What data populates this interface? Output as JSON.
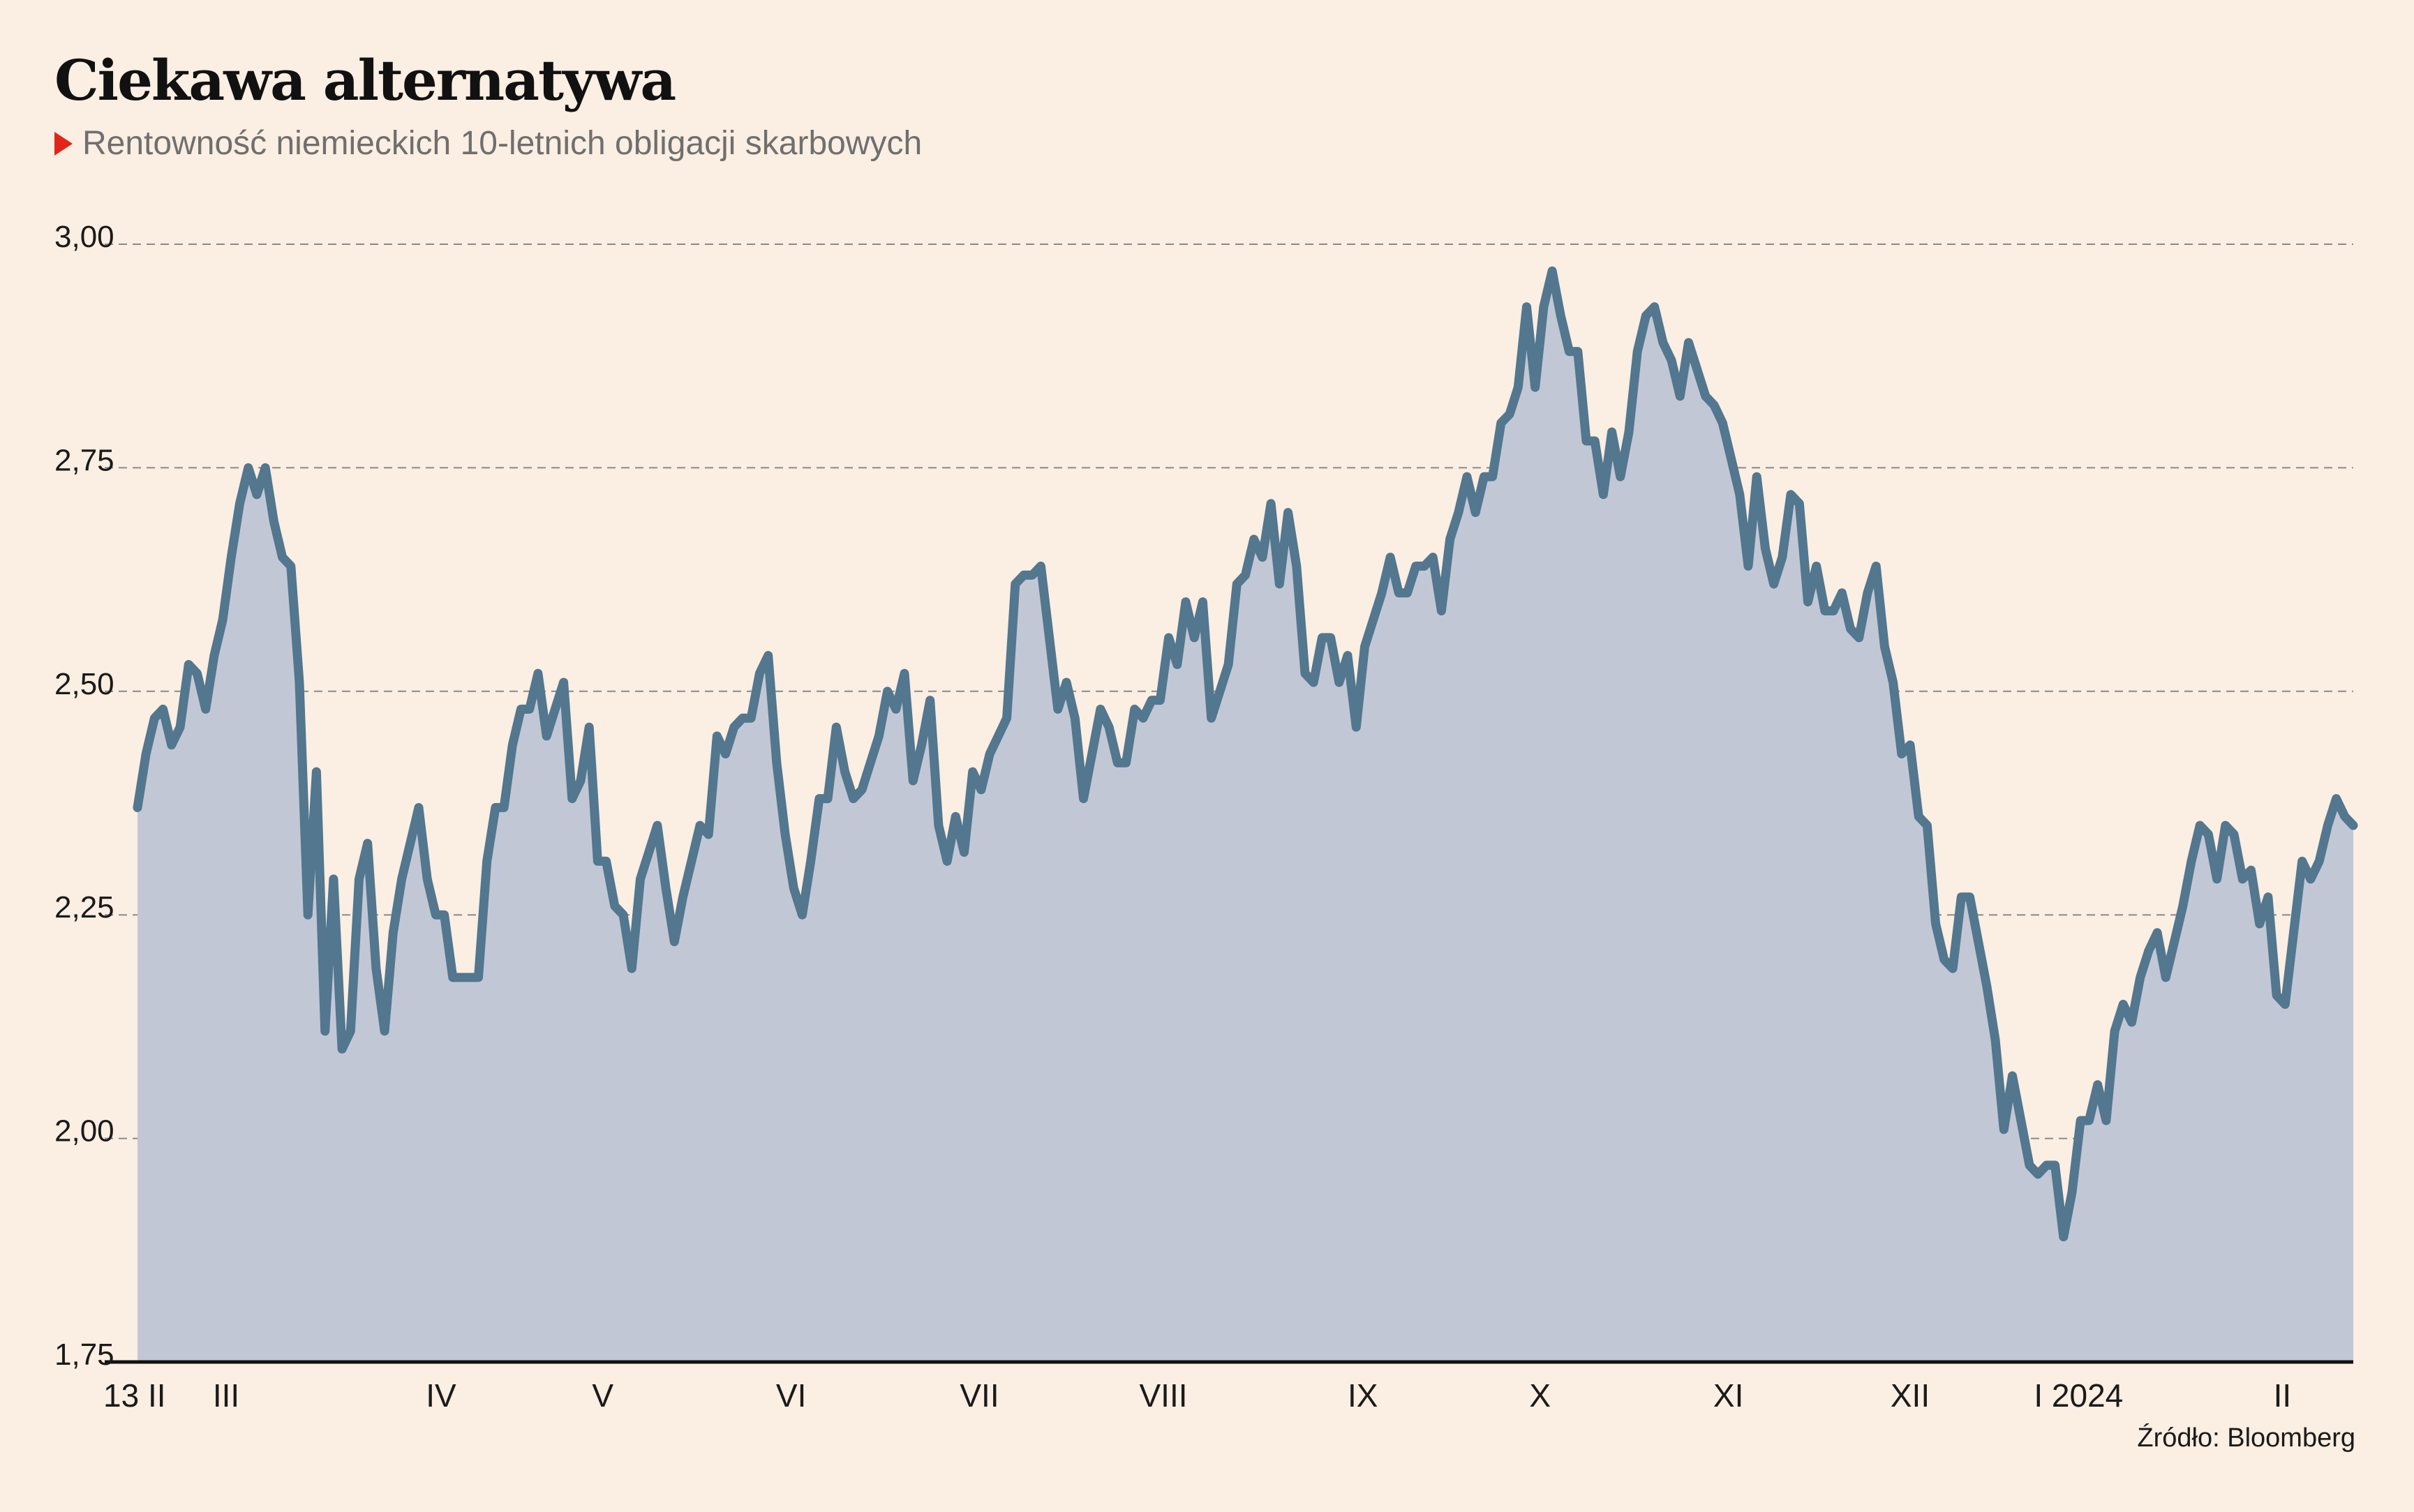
{
  "title": "Ciekawa alternatywa",
  "subtitle": "Rentowność niemieckich 10-letnich obligacji skarbowych",
  "source": "Źródło: Bloomberg",
  "colors": {
    "line": "#52778f",
    "area": "#c2c7d6",
    "background": "#fbeee2",
    "marker": "#e1251b",
    "grid": "#8a8a8a"
  },
  "chart_data": {
    "type": "area",
    "title": "Ciekawa alternatywa",
    "subtitle": "Rentowność niemieckich 10-letnich obligacji skarbowych",
    "ylim": [
      1.75,
      3.0
    ],
    "y_ticks": [
      {
        "value": 3.0,
        "label": "3,00"
      },
      {
        "value": 2.75,
        "label": "2,75"
      },
      {
        "value": 2.5,
        "label": "2,50"
      },
      {
        "value": 2.25,
        "label": "2,25"
      },
      {
        "value": 2.0,
        "label": "2,00"
      },
      {
        "value": 1.75,
        "label": "1,75"
      }
    ],
    "x_tick_labels": [
      "13 II",
      "III",
      "IV",
      "V",
      "VI",
      "VII",
      "VIII",
      "IX",
      "X",
      "XI",
      "XII",
      "I 2024",
      "II"
    ],
    "grid": "dashed horizontal",
    "series": [
      {
        "values": [
          2.37,
          2.43,
          2.47,
          2.48,
          2.44,
          2.46,
          2.53,
          2.52,
          2.48,
          2.54,
          2.58,
          2.65,
          2.71,
          2.75,
          2.72,
          2.75,
          2.69,
          2.65,
          2.64,
          2.51,
          2.25,
          2.41,
          2.12,
          2.29,
          2.1,
          2.12,
          2.29,
          2.33,
          2.19,
          2.12,
          2.23,
          2.29,
          2.33,
          2.37,
          2.29,
          2.25,
          2.25,
          2.18,
          2.18,
          2.18,
          2.18,
          2.31,
          2.37,
          2.37,
          2.44,
          2.48,
          2.48,
          2.52,
          2.45,
          2.48,
          2.51,
          2.38,
          2.4,
          2.46,
          2.31,
          2.31,
          2.26,
          2.25,
          2.19,
          2.29,
          2.32,
          2.35,
          2.28,
          2.22,
          2.27,
          2.31,
          2.35,
          2.34,
          2.45,
          2.43,
          2.46,
          2.47,
          2.47,
          2.52,
          2.54,
          2.42,
          2.34,
          2.28,
          2.25,
          2.31,
          2.38,
          2.38,
          2.46,
          2.41,
          2.38,
          2.39,
          2.42,
          2.45,
          2.5,
          2.48,
          2.52,
          2.4,
          2.44,
          2.49,
          2.35,
          2.31,
          2.36,
          2.32,
          2.41,
          2.39,
          2.43,
          2.45,
          2.47,
          2.62,
          2.63,
          2.63,
          2.64,
          2.56,
          2.48,
          2.51,
          2.47,
          2.38,
          2.43,
          2.48,
          2.46,
          2.42,
          2.42,
          2.48,
          2.47,
          2.49,
          2.49,
          2.56,
          2.53,
          2.6,
          2.56,
          2.6,
          2.47,
          2.5,
          2.53,
          2.62,
          2.63,
          2.67,
          2.65,
          2.71,
          2.62,
          2.7,
          2.64,
          2.52,
          2.51,
          2.56,
          2.56,
          2.51,
          2.54,
          2.46,
          2.55,
          2.58,
          2.61,
          2.65,
          2.61,
          2.61,
          2.64,
          2.64,
          2.65,
          2.59,
          2.67,
          2.7,
          2.74,
          2.7,
          2.74,
          2.74,
          2.8,
          2.81,
          2.84,
          2.93,
          2.84,
          2.93,
          2.97,
          2.92,
          2.88,
          2.88,
          2.78,
          2.78,
          2.72,
          2.79,
          2.74,
          2.79,
          2.88,
          2.92,
          2.93,
          2.89,
          2.87,
          2.83,
          2.89,
          2.86,
          2.83,
          2.82,
          2.8,
          2.76,
          2.72,
          2.64,
          2.74,
          2.66,
          2.62,
          2.65,
          2.72,
          2.71,
          2.6,
          2.64,
          2.59,
          2.59,
          2.61,
          2.57,
          2.56,
          2.61,
          2.64,
          2.55,
          2.51,
          2.43,
          2.44,
          2.36,
          2.35,
          2.24,
          2.2,
          2.19,
          2.27,
          2.27,
          2.22,
          2.17,
          2.11,
          2.01,
          2.07,
          2.02,
          1.97,
          1.96,
          1.97,
          1.97,
          1.89,
          1.94,
          2.02,
          2.02,
          2.06,
          2.02,
          2.12,
          2.15,
          2.13,
          2.18,
          2.21,
          2.23,
          2.18,
          2.22,
          2.26,
          2.31,
          2.35,
          2.34,
          2.29,
          2.35,
          2.34,
          2.29,
          2.3,
          2.24,
          2.27,
          2.16,
          2.15,
          2.23,
          2.31,
          2.29,
          2.31,
          2.35,
          2.38,
          2.36,
          2.35
        ]
      }
    ]
  }
}
